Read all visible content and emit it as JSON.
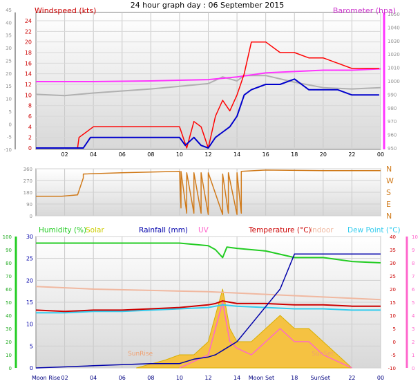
{
  "title": "24 hour graph day : 06 September 2015",
  "chart_data": [
    {
      "type": "line",
      "panel": "wind-barometer",
      "title_left": "Windspeed (kts)",
      "title_right": "Barometer (hpa)",
      "x_ticks": [
        "02",
        "04",
        "06",
        "08",
        "10",
        "12",
        "14",
        "16",
        "18",
        "20",
        "22",
        "00"
      ],
      "x_range": [
        0,
        24
      ],
      "y_left_outer": {
        "range": [
          -10,
          45
        ],
        "ticks": [
          -10,
          -5,
          0,
          5,
          10,
          15,
          20,
          25,
          30,
          35,
          40,
          45
        ]
      },
      "y_left_inner": {
        "range": [
          0,
          24
        ],
        "ticks": [
          0,
          2,
          4,
          6,
          8,
          10,
          12,
          14,
          16,
          18,
          20,
          22,
          24
        ]
      },
      "y_right": {
        "range": [
          950,
          1050
        ],
        "ticks": [
          950,
          960,
          970,
          980,
          990,
          1000,
          1010,
          1020,
          1030,
          1040,
          1050
        ]
      },
      "colors": {
        "gust": "#ff0000",
        "average": "#0000cc",
        "barometer": "#ff33ff",
        "grey": "#b0b0b0"
      },
      "series": [
        {
          "label_color": "#ff0000",
          "x": [
            0,
            2.9,
            3.0,
            4,
            6,
            8,
            10,
            10.5,
            11,
            11.5,
            12,
            12.5,
            13,
            13.5,
            14,
            14.5,
            15,
            16,
            17,
            18,
            19,
            20,
            21,
            22,
            23,
            23.9
          ],
          "values": [
            0,
            0,
            2,
            4,
            4,
            4,
            4,
            0,
            5,
            4,
            0,
            6,
            9,
            7,
            10,
            14,
            20,
            20,
            18,
            18,
            17,
            17,
            16,
            15,
            15,
            15
          ]
        },
        {
          "label_color": "#0000cc",
          "x": [
            0,
            3.3,
            3.8,
            5,
            6,
            7,
            8,
            9,
            10,
            10.4,
            11,
            11.5,
            12,
            12.5,
            13,
            13.5,
            14,
            14.5,
            15,
            16,
            17,
            18,
            19,
            20,
            21,
            22,
            23,
            23.9
          ],
          "values": [
            0,
            0,
            2,
            2,
            2,
            2,
            2,
            2,
            2,
            0.5,
            2,
            0.5,
            0,
            2,
            3,
            4,
            6,
            10,
            11,
            12,
            12,
            13,
            11,
            11,
            11,
            10,
            10,
            10
          ]
        },
        {
          "label_color": "#ff33ff",
          "x": [
            0,
            4,
            8,
            12,
            14,
            16,
            18,
            20,
            22,
            24
          ],
          "values": [
            999.5,
            999.5,
            1000,
            1001,
            1003,
            1006,
            1007,
            1008,
            1008,
            1009
          ]
        },
        {
          "label_color": "#b0b0b0",
          "x": [
            0,
            2,
            4,
            8,
            10,
            12,
            13,
            14,
            14.5,
            16,
            18,
            20,
            22,
            24
          ],
          "values": [
            990,
            989,
            991,
            994,
            996,
            998,
            1003,
            1000,
            1004,
            1004,
            999,
            995,
            994,
            995
          ]
        }
      ]
    },
    {
      "type": "line",
      "panel": "wind-direction",
      "y_left": {
        "range": [
          0,
          360
        ],
        "ticks": [
          0,
          90,
          180,
          270,
          360
        ]
      },
      "y_right_labels": [
        "N",
        "W",
        "S",
        "E",
        "N"
      ],
      "color": "#d07a1a",
      "x": [
        0,
        1.8,
        2.9,
        3.3,
        3.3,
        6,
        10,
        10.1,
        10.1,
        10.5,
        10.5,
        11,
        11,
        11.5,
        11.5,
        12,
        12,
        13,
        13,
        13.4,
        13.4,
        14,
        14,
        14.3,
        14.3,
        16,
        20,
        24
      ],
      "values": [
        150,
        150,
        160,
        290,
        320,
        330,
        340,
        60,
        340,
        20,
        330,
        20,
        330,
        20,
        330,
        10,
        330,
        10,
        320,
        20,
        330,
        10,
        330,
        20,
        340,
        350,
        345,
        345
      ]
    },
    {
      "type": "line",
      "panel": "humidity-temperature",
      "labels": {
        "humidity": "Humidity (%)",
        "solar": "Solar",
        "rainfall": "Rainfall (mm)",
        "uv": "UV",
        "temperature": "Temperature (°C)",
        "indoor": "Indoor",
        "dewpoint": "Dew Point (°C)"
      },
      "x_labels": [
        "Moon Rise",
        "02",
        "04",
        "06",
        "08",
        "10",
        "12",
        "14",
        "Moon Set",
        "18",
        "SunSet",
        "22",
        "00"
      ],
      "annotations": [
        "SunRise",
        "SunSet"
      ],
      "y_hum": {
        "range": [
          0,
          100
        ],
        "ticks": [
          0,
          10,
          20,
          30,
          40,
          50,
          60,
          70,
          80,
          90,
          100
        ]
      },
      "y_rain": {
        "range": [
          0,
          30
        ],
        "ticks": [
          0,
          5,
          10,
          15,
          20,
          25,
          30
        ]
      },
      "y_temp": {
        "range": [
          -10,
          40
        ],
        "ticks": [
          -10,
          -5,
          0,
          5,
          10,
          15,
          20,
          25,
          30,
          35,
          40
        ]
      },
      "y_uv": {
        "range": [
          0,
          10
        ],
        "ticks": [
          0,
          1,
          2,
          3,
          4,
          5,
          6,
          7,
          8,
          9,
          10
        ]
      },
      "colors": {
        "humidity": "#22cc22",
        "solar": "#cccc00",
        "rainfall": "#0000aa",
        "uv": "#ff66cc",
        "temperature": "#cc0000",
        "indoor": "#f0b8a0",
        "dewpoint": "#33ccee"
      },
      "series": [
        {
          "key": "humidity",
          "x": [
            0,
            4,
            8,
            10,
            12,
            12.5,
            13,
            13.3,
            14,
            16,
            18,
            20,
            22,
            24
          ],
          "values": [
            95,
            95,
            95,
            95,
            93,
            90,
            84,
            92,
            91,
            89,
            84,
            84,
            81,
            80
          ]
        },
        {
          "key": "indoor",
          "x": [
            0,
            4,
            8,
            12,
            16,
            20,
            24
          ],
          "values": [
            21,
            20,
            19.5,
            19,
            18,
            17,
            16
          ]
        },
        {
          "key": "temperature",
          "x": [
            0,
            2,
            4,
            6,
            8,
            10,
            12,
            12.5,
            13,
            13.5,
            14,
            16,
            18,
            20,
            22,
            24
          ],
          "values": [
            12,
            11.5,
            12,
            12,
            12.5,
            13,
            14,
            14.5,
            15.5,
            15,
            14.5,
            14.5,
            14,
            14,
            13.5,
            13.5
          ]
        },
        {
          "key": "dewpoint",
          "x": [
            0,
            2,
            4,
            6,
            8,
            10,
            12,
            13,
            14,
            16,
            18,
            20,
            22,
            24
          ],
          "values": [
            11,
            11,
            11.5,
            11.5,
            12,
            12.5,
            13,
            14,
            13.5,
            13,
            12.5,
            12.5,
            12,
            12
          ]
        },
        {
          "key": "rainfall",
          "x": [
            0,
            4,
            8,
            10,
            11,
            12,
            12.5,
            13,
            13.5,
            14,
            15,
            16,
            17,
            18,
            24
          ],
          "values": [
            0,
            0.5,
            1,
            1,
            2,
            2.5,
            3,
            4,
            5,
            6,
            10,
            14,
            18,
            26,
            26
          ]
        },
        {
          "key": "solar",
          "x": [
            7,
            8,
            9,
            10,
            11,
            12,
            12.5,
            13,
            13.5,
            14,
            15,
            16,
            17,
            18,
            19,
            20,
            21,
            22
          ],
          "values": [
            0,
            0.3,
            0.6,
            1,
            1,
            2,
            4,
            6,
            3,
            2,
            2,
            3,
            4,
            3,
            3,
            2,
            1,
            0
          ]
        },
        {
          "key": "uv",
          "x": [
            10,
            11,
            12,
            12.5,
            13,
            13.5,
            14,
            15,
            16,
            17,
            18,
            19,
            20,
            21,
            22
          ],
          "values": [
            0,
            0.5,
            1,
            3,
            5,
            2,
            1.5,
            1,
            2,
            3,
            2,
            2,
            1,
            0.5,
            0
          ]
        }
      ]
    }
  ]
}
